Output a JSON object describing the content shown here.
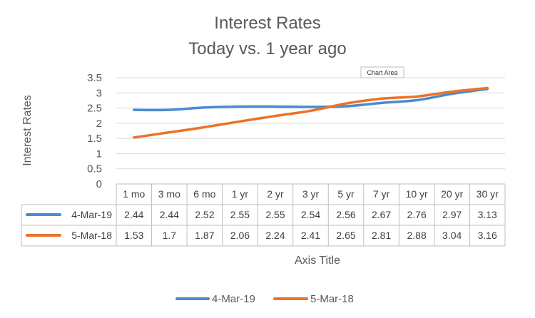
{
  "chart_data": {
    "type": "line",
    "title": [
      "Interest Rates",
      "Today vs. 1 year ago"
    ],
    "ylabel": "Interest  Rates",
    "xlabel": "Axis Title",
    "ylim": [
      0,
      3.5
    ],
    "yticks": [
      "0",
      "0.5",
      "1",
      "1.5",
      "2",
      "2.5",
      "3",
      "3.5"
    ],
    "grid": true,
    "legend_position": "bottom",
    "categories": [
      "1 mo",
      "3 mo",
      "6 mo",
      "1 yr",
      "2 yr",
      "3 yr",
      "5 yr",
      "7 yr",
      "10 yr",
      "20 yr",
      "30 yr"
    ],
    "series": [
      {
        "name": "4-Mar-19",
        "color": "#4a8bd1",
        "values": [
          2.44,
          2.44,
          2.52,
          2.55,
          2.55,
          2.54,
          2.56,
          2.67,
          2.76,
          2.97,
          3.13
        ],
        "labels": [
          "2.44",
          "2.44",
          "2.52",
          "2.55",
          "2.55",
          "2.54",
          "2.56",
          "2.67",
          "2.76",
          "2.97",
          "3.13"
        ]
      },
      {
        "name": "5-Mar-18",
        "color": "#ec7227",
        "values": [
          1.53,
          1.7,
          1.87,
          2.06,
          2.24,
          2.41,
          2.65,
          2.81,
          2.88,
          3.04,
          3.16
        ],
        "labels": [
          "1.53",
          "1.7",
          "1.87",
          "2.06",
          "2.24",
          "2.41",
          "2.65",
          "2.81",
          "2.88",
          "3.04",
          "3.16"
        ]
      }
    ]
  },
  "tooltip": {
    "text": "Chart Area"
  }
}
